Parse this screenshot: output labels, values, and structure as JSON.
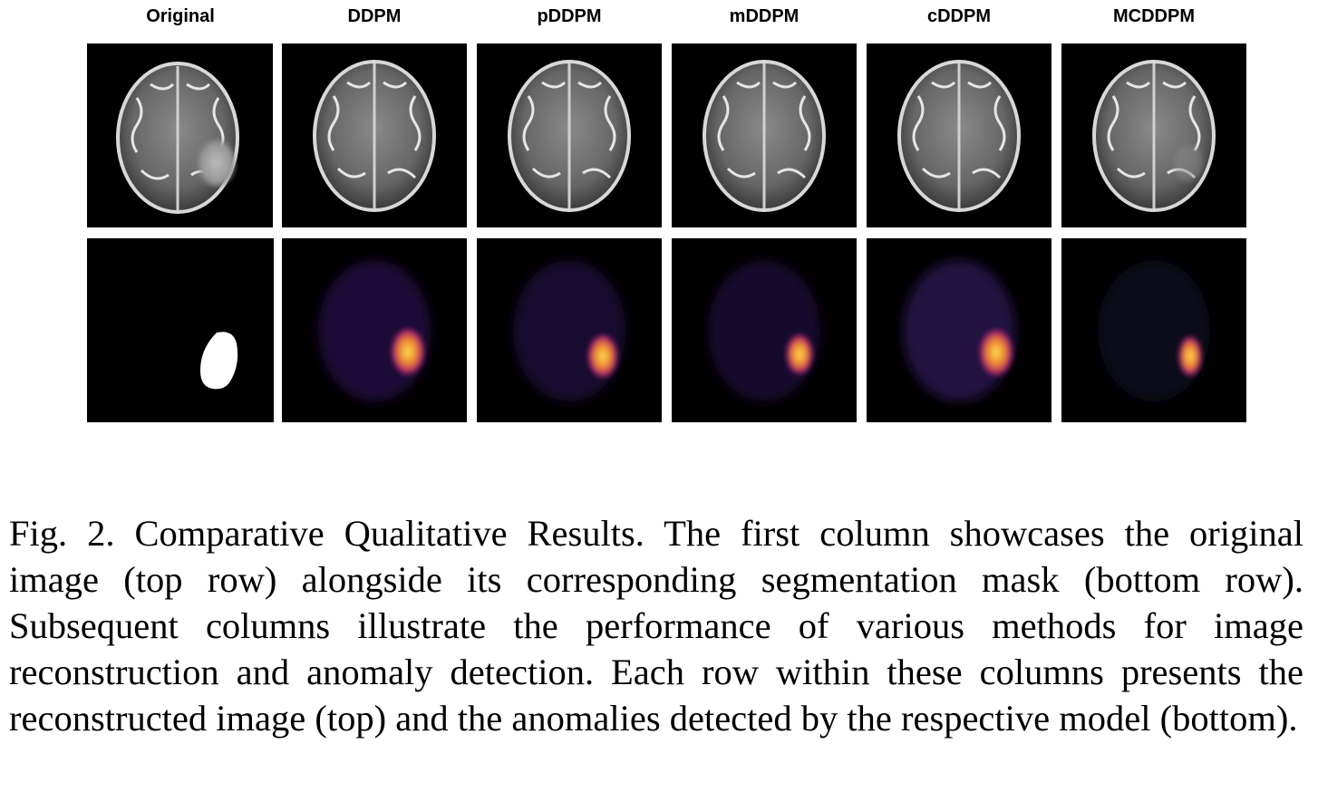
{
  "figure": {
    "columns": [
      {
        "title": "Original",
        "top_image": "brain-mri-slice-with-lesion",
        "bottom_image": "binary-segmentation-mask"
      },
      {
        "title": "DDPM",
        "top_image": "reconstructed-brain-slice",
        "bottom_image": "anomaly-heatmap"
      },
      {
        "title": "pDDPM",
        "top_image": "reconstructed-brain-slice",
        "bottom_image": "anomaly-heatmap"
      },
      {
        "title": "mDDPM",
        "top_image": "reconstructed-brain-slice",
        "bottom_image": "anomaly-heatmap"
      },
      {
        "title": "cDDPM",
        "top_image": "reconstructed-brain-slice",
        "bottom_image": "anomaly-heatmap"
      },
      {
        "title": "MCDDPM",
        "top_image": "reconstructed-brain-slice",
        "bottom_image": "anomaly-heatmap"
      }
    ],
    "colors": {
      "background": "#000000",
      "tissue": "#6e6e6e",
      "heat_low": "#1e0e3c",
      "heat_mid": "#c2306a",
      "heat_high": "#fcd13a"
    }
  },
  "caption": {
    "label": "Fig. 2.",
    "text": "Comparative Qualitative Results. The first column showcases the original image (top row) alongside its corresponding segmentation mask (bottom row). Subsequent columns illustrate the performance of various methods for image reconstruction and anomaly detection. Each row within these columns presents the reconstructed image (top) and the anomalies detected by the respective model (bottom)."
  }
}
